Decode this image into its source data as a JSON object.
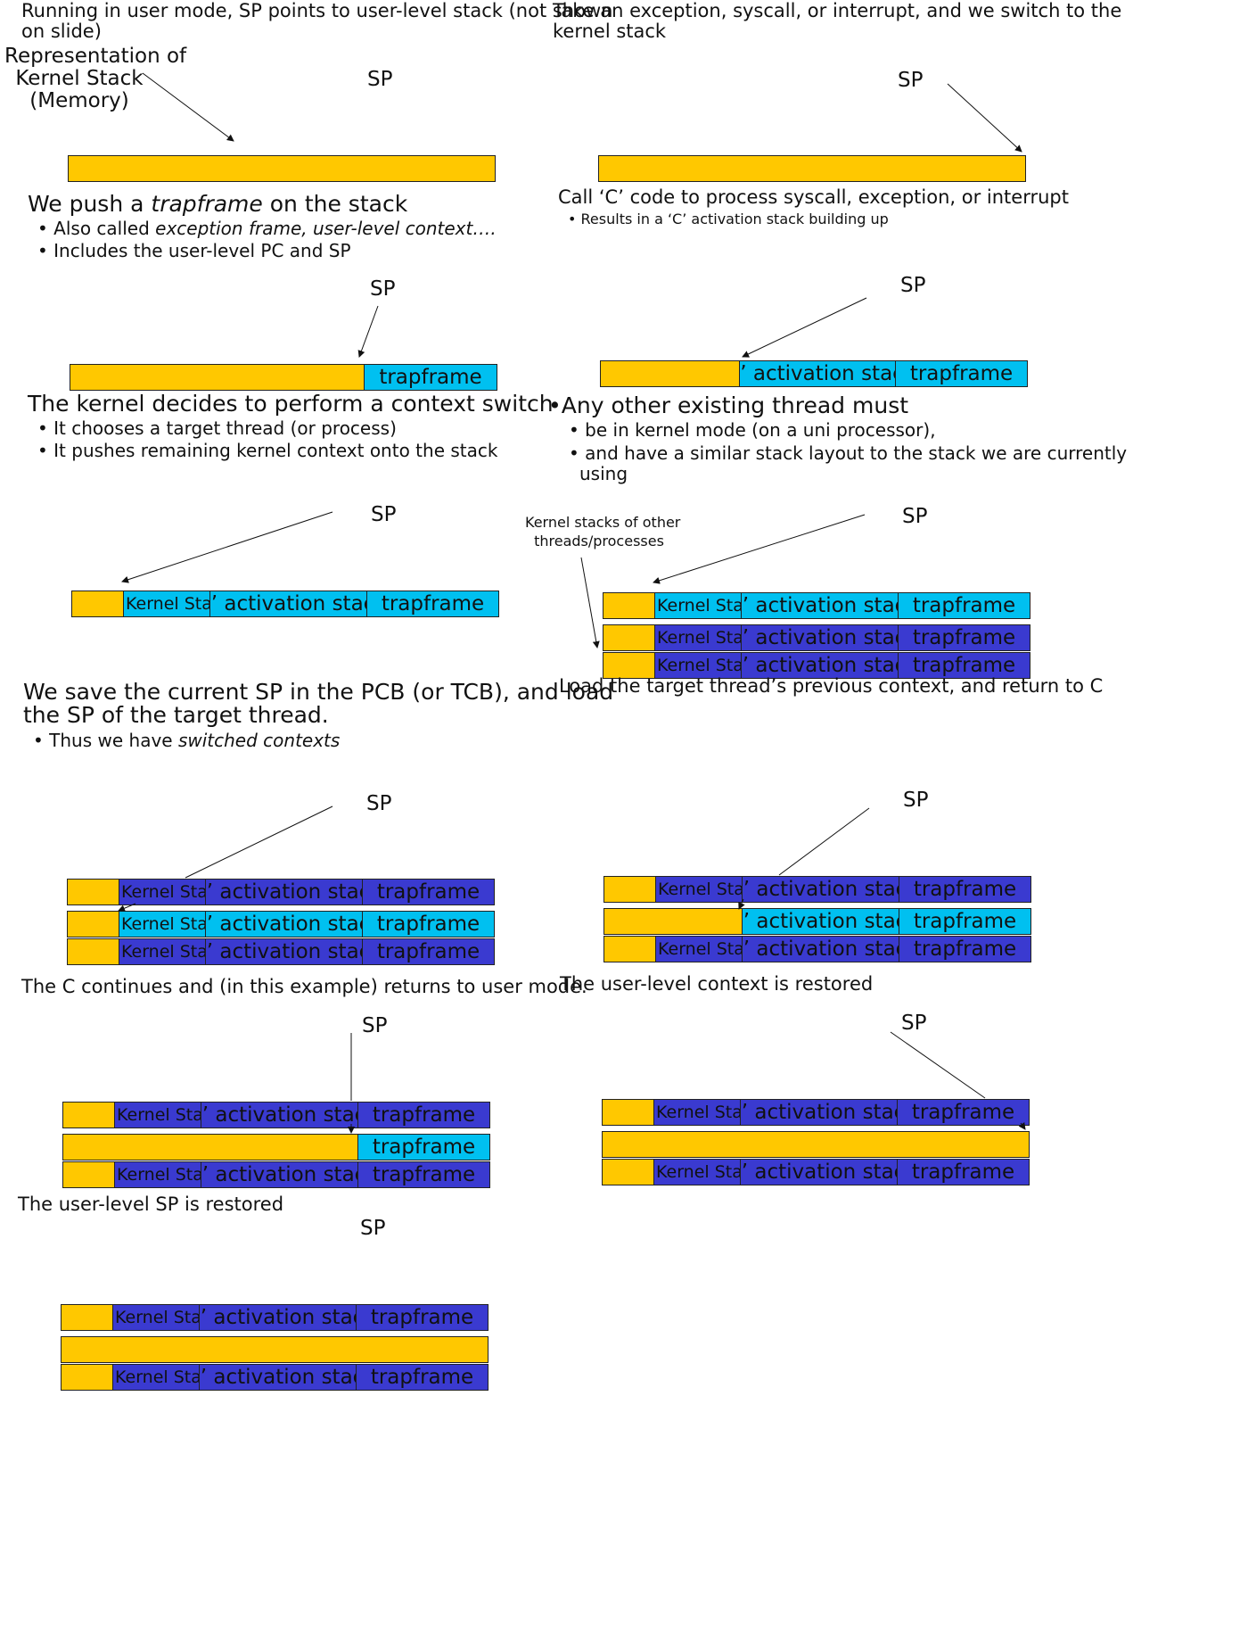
{
  "texts": {
    "p1": "Running in user mode, SP points to user-level stack (not shown",
    "p1b": "on slide)",
    "rep1": "Representation of",
    "rep2": "Kernel Stack",
    "rep3": "(Memory)",
    "p2": "Take an exception, syscall, or interrupt, and we switch to the",
    "p2b": "kernel stack",
    "p3_pre": "We push a ",
    "p3_em": "trapframe",
    "p3_post": " on the stack",
    "p3_b1_pre": "Also called ",
    "p3_b1_em": "exception frame, user-level context….",
    "p3_b2": "Includes the user-level PC and SP",
    "p4": "Call ‘C’ code to process syscall, exception, or interrupt",
    "p4_b1": "Results in a ‘C’ activation stack building up",
    "p5": "The kernel decides to perform a context switch",
    "p5_b1": "It chooses a target thread (or process)",
    "p5_b2": "It pushes remaining kernel context onto the stack",
    "p6": "Any other existing thread must",
    "p6_b1": "be in kernel mode (on a uni processor),",
    "p6_b2": "and have a similar stack layout to the stack we are currently",
    "p6_b2b": "using",
    "other1": "Kernel stacks of other",
    "other2": "threads/processes",
    "p7a": "We save the current SP in the PCB (or TCB), and load",
    "p7b": "the SP of the target thread.",
    "p7_b1_pre": "Thus we have ",
    "p7_b1_em": "switched contexts",
    "p8": "Load the target thread’s previous context, and return to C",
    "p9": "The C continues and (in this example) returns to user mode.",
    "p10": "The user-level context is restored",
    "p11": "The user-level SP is restored"
  },
  "labels": {
    "sp": "SP",
    "kernel_state": "Kernel State",
    "c_activation": "‘C’ activation stack",
    "trapframe": "trapframe",
    "bullet": "•"
  },
  "colors": {
    "memory": "#ffc800",
    "current_stack": "#00c0f0",
    "other_stack": "#3a3ad0"
  }
}
